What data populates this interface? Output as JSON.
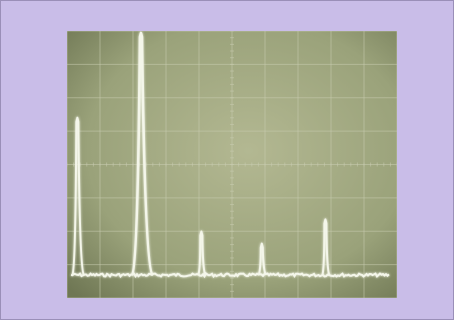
{
  "photo": {
    "subject": "oscilloscope-spectrum-display",
    "frame_color": "#c9bde8",
    "screen_color": "#9aa27a",
    "trace_color": "#f4f6ea"
  },
  "screen": {
    "top_right_readout": "",
    "bottom_center_readout": "",
    "right_scale_labels": [
      "",
      "",
      "",
      "",
      "",
      "",
      ""
    ]
  },
  "spectrum_peaks": [
    {
      "position": 0.02,
      "height": 0.65
    },
    {
      "position": 0.22,
      "height": 1.0
    },
    {
      "position": 0.41,
      "height": 0.18
    },
    {
      "position": 0.6,
      "height": 0.13
    },
    {
      "position": 0.8,
      "height": 0.23
    }
  ]
}
